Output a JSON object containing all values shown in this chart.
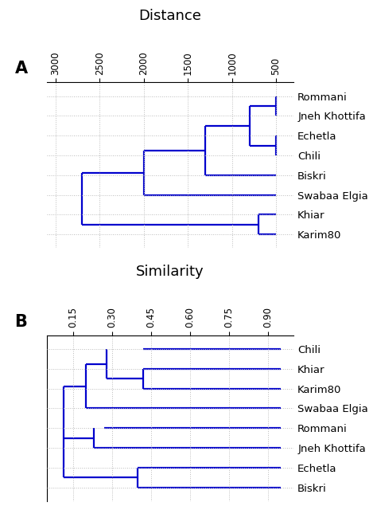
{
  "panel_A": {
    "title": "Distance",
    "label": "A",
    "labels": [
      "Rommani",
      "Jneh Khottifa",
      "Echetla",
      "Chili",
      "Biskri",
      "Swabaa Elgia",
      "Khiar",
      "Karim80"
    ],
    "xlim": [
      3100,
      300
    ],
    "xticks": [
      3000,
      2500,
      2000,
      1500,
      1000,
      500
    ],
    "ylim": [
      8.7,
      0.3
    ],
    "line_segments": [
      [
        500,
        1,
        500,
        2
      ],
      [
        500,
        1.5,
        800,
        1.5
      ],
      [
        500,
        3,
        500,
        4
      ],
      [
        500,
        3.5,
        800,
        3.5
      ],
      [
        800,
        1.5,
        800,
        3.5
      ],
      [
        800,
        2.5,
        1300,
        2.5
      ],
      [
        500,
        5,
        1300,
        5
      ],
      [
        1300,
        2.5,
        1300,
        5
      ],
      [
        1300,
        3.75,
        2000,
        3.75
      ],
      [
        500,
        6,
        2000,
        6
      ],
      [
        2000,
        3.75,
        2000,
        6
      ],
      [
        2000,
        4.875,
        2700,
        4.875
      ],
      [
        500,
        7,
        700,
        7
      ],
      [
        500,
        8,
        700,
        8
      ],
      [
        700,
        7,
        700,
        8
      ],
      [
        700,
        7.5,
        2700,
        7.5
      ],
      [
        2700,
        4.875,
        2700,
        7.5
      ]
    ]
  },
  "panel_B": {
    "title": "Similarity",
    "label": "B",
    "labels": [
      "Chili",
      "Khiar",
      "Karim80",
      "Swabaa Elgia",
      "Rommani",
      "Jneh Khottifa",
      "Echetla",
      "Biskri"
    ],
    "xlim": [
      0.05,
      1.0
    ],
    "xticks": [
      0.15,
      0.3,
      0.45,
      0.6,
      0.75,
      0.9
    ],
    "ylim": [
      8.7,
      0.3
    ],
    "line_segments": [
      [
        0.42,
        1,
        0.95,
        1
      ],
      [
        0.42,
        2,
        0.95,
        2
      ],
      [
        0.42,
        3,
        0.95,
        3
      ],
      [
        0.42,
        2,
        0.42,
        3
      ],
      [
        0.28,
        2.5,
        0.42,
        2.5
      ],
      [
        0.28,
        1,
        0.28,
        2.5
      ],
      [
        0.2,
        1.75,
        0.28,
        1.75
      ],
      [
        0.2,
        4,
        0.95,
        4
      ],
      [
        0.2,
        1.75,
        0.2,
        4
      ],
      [
        0.115,
        2.875,
        0.2,
        2.875
      ],
      [
        0.27,
        5,
        0.95,
        5
      ],
      [
        0.23,
        6,
        0.95,
        6
      ],
      [
        0.23,
        5,
        0.23,
        6
      ],
      [
        0.2,
        5.5,
        0.23,
        5.5
      ],
      [
        0.4,
        7,
        0.95,
        7
      ],
      [
        0.4,
        8,
        0.95,
        8
      ],
      [
        0.4,
        7,
        0.4,
        8
      ],
      [
        0.2,
        7.5,
        0.4,
        7.5
      ],
      [
        0.115,
        2.875,
        0.115,
        5.5
      ],
      [
        0.115,
        5.5,
        0.2,
        5.5
      ],
      [
        0.115,
        5.5,
        0.115,
        7.5
      ],
      [
        0.115,
        7.5,
        0.2,
        7.5
      ]
    ]
  },
  "line_color": "#0000CD",
  "line_width": 1.6,
  "grid_color": "#BBBBBB",
  "label_fontsize": 9.5,
  "tick_fontsize": 8.5,
  "title_fontsize": 13,
  "panel_label_fontsize": 15
}
